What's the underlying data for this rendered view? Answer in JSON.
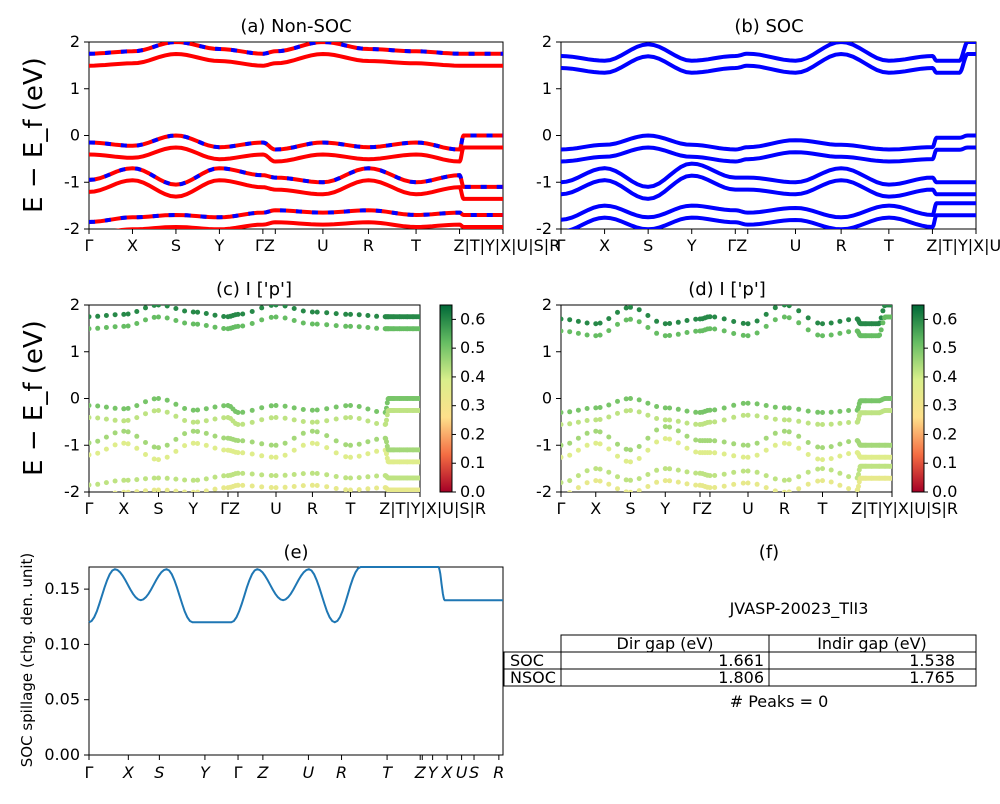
{
  "figure": {
    "ylabel_main": "E − E_f (eV)",
    "kpath": [
      "Γ",
      "X",
      "S",
      "Y",
      "Γ",
      "Z",
      "U",
      "R",
      "T",
      "Z",
      "T",
      "Y",
      "X",
      "U",
      "S",
      "R"
    ],
    "kpath_tick_labels": [
      "Γ",
      "X",
      "S",
      "Y",
      "Γ Z",
      "U",
      "R",
      "T",
      "Z|T|Y|X|U|S|R"
    ]
  },
  "chart_data": [
    {
      "id": "a",
      "type": "line",
      "title": "(a) Non-SOC",
      "ylabel": "E − E_f (eV)",
      "ylim": [
        -2,
        2
      ],
      "yticks": [
        -2,
        -1,
        0,
        1,
        2
      ],
      "xtick_labels": [
        "Γ",
        "X",
        "S",
        "Y",
        "Γ",
        "Z",
        "U",
        "R",
        "T",
        "Z",
        "T",
        "Y",
        "X",
        "U",
        "S",
        "R"
      ],
      "series": [
        {
          "color": "#ff0000",
          "values_at_kpoints": [
            -0.15,
            -0.22,
            0.0,
            -0.25,
            -0.15,
            -0.3,
            -0.15,
            -0.25,
            -0.15,
            -0.3,
            0.0,
            0.0,
            0.0,
            0.0,
            0.0,
            0.0
          ]
        },
        {
          "color": "#ff0000",
          "values_at_kpoints": [
            -0.95,
            -0.7,
            -1.05,
            -0.7,
            -0.85,
            -0.9,
            -1.0,
            -0.7,
            -1.0,
            -0.85,
            -1.1,
            -1.1,
            -1.1,
            -1.1,
            -1.1,
            -1.1
          ]
        },
        {
          "color": "#ff0000",
          "values_at_kpoints": [
            -1.85,
            -1.75,
            -1.7,
            -1.75,
            -1.65,
            -1.6,
            -1.65,
            -1.6,
            -1.7,
            -1.65,
            -1.7,
            -1.7,
            -1.7,
            -1.7,
            -1.7,
            -1.7
          ]
        },
        {
          "color": "#ff0000",
          "values_at_kpoints": [
            1.75,
            1.8,
            2.0,
            1.85,
            1.75,
            1.8,
            2.0,
            1.85,
            1.8,
            1.75,
            1.75,
            1.75,
            1.75,
            1.75,
            1.75,
            1.75
          ]
        }
      ]
    },
    {
      "id": "b",
      "type": "line",
      "title": "(b) SOC",
      "ylim": [
        -2,
        2
      ],
      "yticks": [
        -2,
        -1,
        0,
        1,
        2
      ],
      "xtick_labels": [
        "Γ",
        "X",
        "S",
        "Y",
        "Γ",
        "Z",
        "U",
        "R",
        "T",
        "Z",
        "T",
        "Y",
        "X",
        "U",
        "S",
        "R"
      ],
      "series": [
        {
          "color": "#0000ff",
          "values_at_kpoints": [
            1.7,
            1.6,
            1.95,
            1.6,
            1.7,
            1.75,
            1.6,
            2.0,
            1.6,
            1.7,
            1.6,
            1.6,
            1.6,
            1.6,
            2.0,
            2.0
          ]
        },
        {
          "color": "#0000ff",
          "values_at_kpoints": [
            -0.3,
            -0.2,
            0.0,
            -0.2,
            -0.3,
            -0.25,
            -0.1,
            -0.2,
            -0.3,
            -0.25,
            -0.05,
            -0.05,
            -0.05,
            -0.05,
            0.0,
            0.0
          ]
        },
        {
          "color": "#0000ff",
          "values_at_kpoints": [
            -1.0,
            -0.7,
            -1.1,
            -0.6,
            -0.9,
            -0.9,
            -1.0,
            -0.7,
            -1.05,
            -0.9,
            -1.0,
            -1.0,
            -1.0,
            -1.0,
            -1.0,
            -1.0
          ]
        },
        {
          "color": "#0000ff",
          "values_at_kpoints": [
            -1.8,
            -1.5,
            -1.75,
            -1.5,
            -1.6,
            -1.65,
            -1.55,
            -1.75,
            -1.5,
            -1.7,
            -1.45,
            -1.45,
            -1.45,
            -1.45,
            -1.45,
            -1.45
          ]
        }
      ]
    },
    {
      "id": "c",
      "type": "scatter",
      "title": "(c)  I ['p']",
      "ylabel": "E − E_f (eV)",
      "ylim": [
        -2,
        2
      ],
      "yticks": [
        -2,
        -1,
        0,
        1,
        2
      ],
      "colorbar": {
        "min": 0.0,
        "max": 0.65,
        "ticks": [
          0.0,
          0.1,
          0.2,
          0.3,
          0.4,
          0.5,
          0.6
        ]
      },
      "xtick_labels": [
        "Γ",
        "X",
        "S",
        "Y",
        "Γ",
        "Z",
        "U",
        "R",
        "T",
        "Z",
        "T",
        "Y",
        "X",
        "U",
        "S",
        "R"
      ],
      "series": [
        {
          "weight": 0.6,
          "values_at_kpoints": [
            1.75,
            1.8,
            2.0,
            1.85,
            1.75,
            1.8,
            2.0,
            1.85,
            1.8,
            1.75,
            1.75,
            1.75,
            1.75,
            1.75,
            1.75,
            1.75
          ]
        },
        {
          "weight": 0.5,
          "values_at_kpoints": [
            -0.15,
            -0.22,
            0.0,
            -0.25,
            -0.15,
            -0.3,
            -0.15,
            -0.25,
            -0.15,
            -0.3,
            0.0,
            0.0,
            0.0,
            0.0,
            0.0,
            0.0
          ]
        },
        {
          "weight": 0.45,
          "values_at_kpoints": [
            -0.95,
            -0.7,
            -1.05,
            -0.7,
            -0.85,
            -0.9,
            -1.0,
            -0.7,
            -1.0,
            -0.85,
            -1.1,
            -1.1,
            -1.1,
            -1.1,
            -1.1,
            -1.1
          ]
        },
        {
          "weight": 0.42,
          "values_at_kpoints": [
            -1.85,
            -1.75,
            -1.7,
            -1.75,
            -1.65,
            -1.6,
            -1.65,
            -1.6,
            -1.7,
            -1.65,
            -1.7,
            -1.7,
            -1.7,
            -1.7,
            -1.7,
            -1.7
          ]
        }
      ]
    },
    {
      "id": "d",
      "type": "scatter",
      "title": "(d) I ['p']",
      "ylim": [
        -2,
        2
      ],
      "yticks": [
        -2,
        -1,
        0,
        1,
        2
      ],
      "colorbar": {
        "min": 0.0,
        "max": 0.65,
        "ticks": [
          0.0,
          0.1,
          0.2,
          0.3,
          0.4,
          0.5,
          0.6
        ]
      },
      "xtick_labels": [
        "Γ",
        "X",
        "S",
        "Y",
        "Γ",
        "Z",
        "U",
        "R",
        "T",
        "Z",
        "T",
        "Y",
        "X",
        "U",
        "S",
        "R"
      ],
      "series": [
        {
          "weight": 0.6,
          "values_at_kpoints": [
            1.7,
            1.6,
            1.95,
            1.6,
            1.7,
            1.75,
            1.6,
            2.0,
            1.6,
            1.7,
            1.6,
            1.6,
            1.6,
            1.6,
            2.0,
            2.0
          ]
        },
        {
          "weight": 0.5,
          "values_at_kpoints": [
            -0.3,
            -0.2,
            0.0,
            -0.2,
            -0.3,
            -0.25,
            -0.1,
            -0.2,
            -0.3,
            -0.25,
            -0.05,
            -0.05,
            -0.05,
            -0.05,
            0.0,
            0.0
          ]
        },
        {
          "weight": 0.45,
          "values_at_kpoints": [
            -1.0,
            -0.7,
            -1.1,
            -0.6,
            -0.9,
            -0.9,
            -1.0,
            -0.7,
            -1.05,
            -0.9,
            -1.0,
            -1.0,
            -1.0,
            -1.0,
            -1.0,
            -1.0
          ]
        },
        {
          "weight": 0.42,
          "values_at_kpoints": [
            -1.8,
            -1.5,
            -1.75,
            -1.5,
            -1.6,
            -1.65,
            -1.55,
            -1.75,
            -1.5,
            -1.7,
            -1.45,
            -1.45,
            -1.45,
            -1.45,
            -1.45,
            -1.45
          ]
        }
      ]
    },
    {
      "id": "e",
      "type": "line",
      "title": "(e)",
      "ylabel": "SOC spillage (chg. den. unit)",
      "ylim": [
        0.0,
        0.17
      ],
      "yticks": [
        0.0,
        0.05,
        0.1,
        0.15
      ],
      "ytick_labels": [
        "0.00",
        "0.05",
        "0.10",
        "0.15"
      ],
      "xtick_labels": [
        "Γ",
        "X",
        "S",
        "Y",
        "Γ",
        "Z",
        "U",
        "R",
        "T",
        "Z",
        "T",
        "Y",
        "X",
        "U",
        "S",
        "R"
      ],
      "series": [
        {
          "color": "#1f77b4",
          "x": [
            0,
            4,
            8,
            12,
            16,
            20,
            22,
            26,
            30,
            34,
            38,
            42,
            46,
            50,
            52,
            54,
            55,
            56,
            58,
            60,
            62,
            64
          ],
          "values": [
            0.12,
            0.168,
            0.14,
            0.168,
            0.12,
            0.12,
            0.12,
            0.168,
            0.14,
            0.168,
            0.12,
            0.17,
            0.17,
            0.17,
            0.17,
            0.17,
            0.14,
            0.14,
            0.14,
            0.14,
            0.14,
            0.14
          ]
        }
      ]
    }
  ],
  "panel_f": {
    "title": "(f)",
    "material": "JVASP-20023_TlI3",
    "table": {
      "headers": [
        "",
        "Dir gap (eV)",
        "Indir gap (eV)"
      ],
      "rows": [
        [
          "SOC",
          "1.661",
          "1.538"
        ],
        [
          "NSOC",
          "1.806",
          "1.765"
        ]
      ]
    },
    "peaks_text": "# Peaks = 0"
  }
}
